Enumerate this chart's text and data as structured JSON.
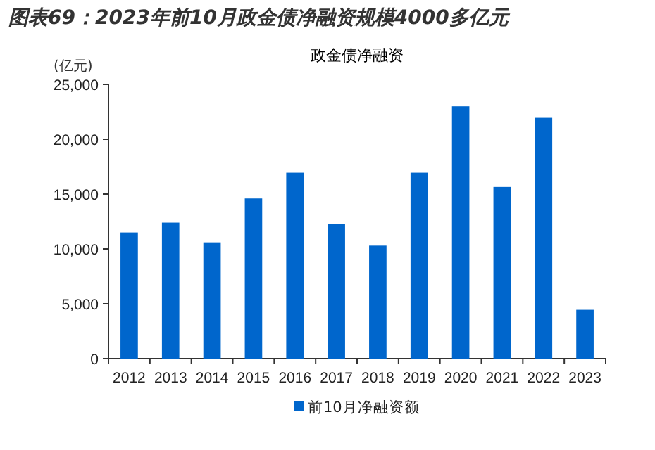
{
  "chart_data": {
    "type": "bar",
    "title": "图表69：2023年前10月政金债净融资规模4000多亿元",
    "subtitle": "政金债净融资",
    "ylabel": "(亿元)",
    "categories": [
      "2012",
      "2013",
      "2014",
      "2015",
      "2016",
      "2017",
      "2018",
      "2019",
      "2020",
      "2021",
      "2022",
      "2023"
    ],
    "series": [
      {
        "name": "前10月净融资额",
        "color": "#0066cc",
        "values": [
          11500,
          12400,
          10600,
          14600,
          16950,
          12300,
          10300,
          16950,
          23000,
          15650,
          21950,
          4450
        ]
      }
    ],
    "ylim": [
      0,
      25000
    ],
    "yticks": [
      0,
      {
        "value": 5000,
        "label": "5,000"
      },
      {
        "value": 10000,
        "label": "10,000"
      },
      {
        "value": 15000,
        "label": "15,000"
      },
      {
        "value": 20000,
        "label": "20,000"
      },
      {
        "value": 25000,
        "label": "25,000"
      }
    ],
    "legend": "bottom",
    "grid": false
  }
}
